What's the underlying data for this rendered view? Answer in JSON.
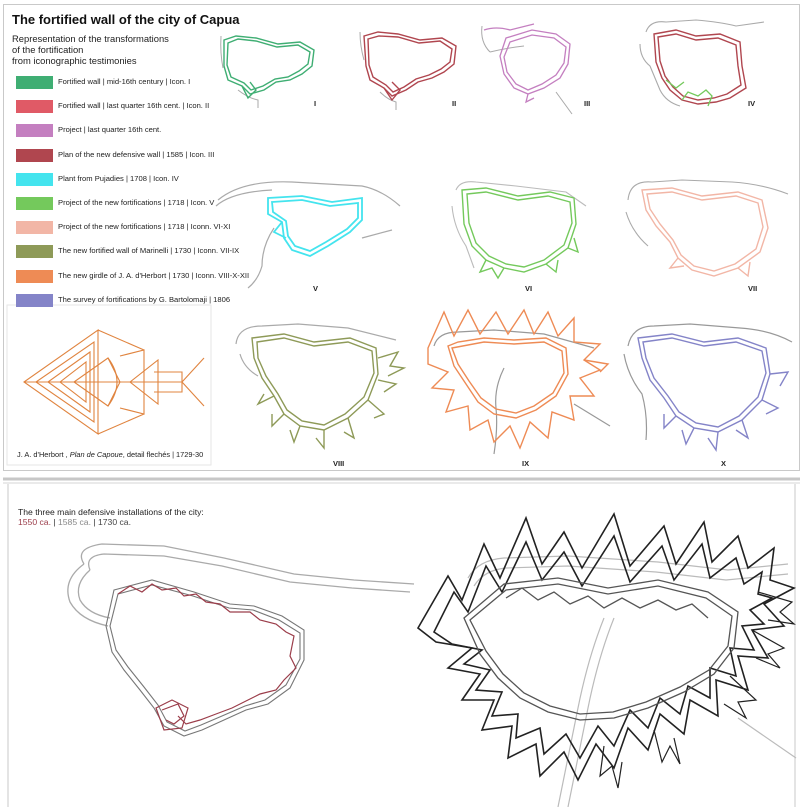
{
  "title": "The fortified wall of the city of Capua",
  "subtitle_lines": [
    "Representation of the transformations",
    "of the fortification",
    "from iconographic testimonies"
  ],
  "legend": [
    {
      "color": "#3fae73",
      "label": "Fortified wall | mid-16th century | Icon. I"
    },
    {
      "color": "#e05a66",
      "label": "Fortified wall | last quarter 16th cent. | Icon. II"
    },
    {
      "color": "#c47fc0",
      "label": "Project | last quarter 16th cent."
    },
    {
      "color": "#b0464f",
      "label": "Plan of the new defensive wall | 1585 | Icon. III"
    },
    {
      "color": "#44e4ee",
      "label": "Plant from Pujadies | 1708 | Icon. IV"
    },
    {
      "color": "#74c95c",
      "label": "Project of the new fortifications | 1718 | Icon.  V"
    },
    {
      "color": "#f2b6a6",
      "label": "Project of the new fortifications | 1718 | Iconn. VI-XI"
    },
    {
      "color": "#8e9a58",
      "label": "The new fortified wall of Marinelli | 1730 | Iconn. VII-IX"
    },
    {
      "color": "#ee8b55",
      "label": "The new girdle of J. A. d'Herbort | 1730 | Iconn. VIII-X-XII"
    },
    {
      "color": "#8484c8",
      "label": "The survey of fortifications by G. Bartolomaji | 1806"
    }
  ],
  "panels": [
    {
      "label": "I",
      "color": "#3fae73"
    },
    {
      "label": "II",
      "color": "#b0464f"
    },
    {
      "label": "III",
      "color": "#c47fc0"
    },
    {
      "label": "IV",
      "color": "#b0464f"
    },
    {
      "label": "V",
      "color": "#44e4ee"
    },
    {
      "label": "VI",
      "color": "#74c95c"
    },
    {
      "label": "VII",
      "color": "#f2b6a6"
    },
    {
      "label": "VIII",
      "color": "#8e9a58"
    },
    {
      "label": "IX",
      "color": "#ee8b55"
    },
    {
      "label": "X",
      "color": "#8484c8"
    }
  ],
  "caption": {
    "author": "J. A. d'Herbort , ",
    "work": "Plan de Capoue",
    "rest": ", detail flechés | 1729-30"
  },
  "bottom": {
    "title": "The three main defensive installations of the city:",
    "dates": [
      {
        "text": "1550 ca.",
        "color": "#9b3d4a"
      },
      {
        "text": "1585 ca.",
        "color": "#888888"
      },
      {
        "text": "1730 ca.",
        "color": "#444444"
      }
    ],
    "separator": " | "
  },
  "colors": {
    "river": "#aaaaaa",
    "dark": "#333333",
    "frame": "#bdbdbd"
  }
}
